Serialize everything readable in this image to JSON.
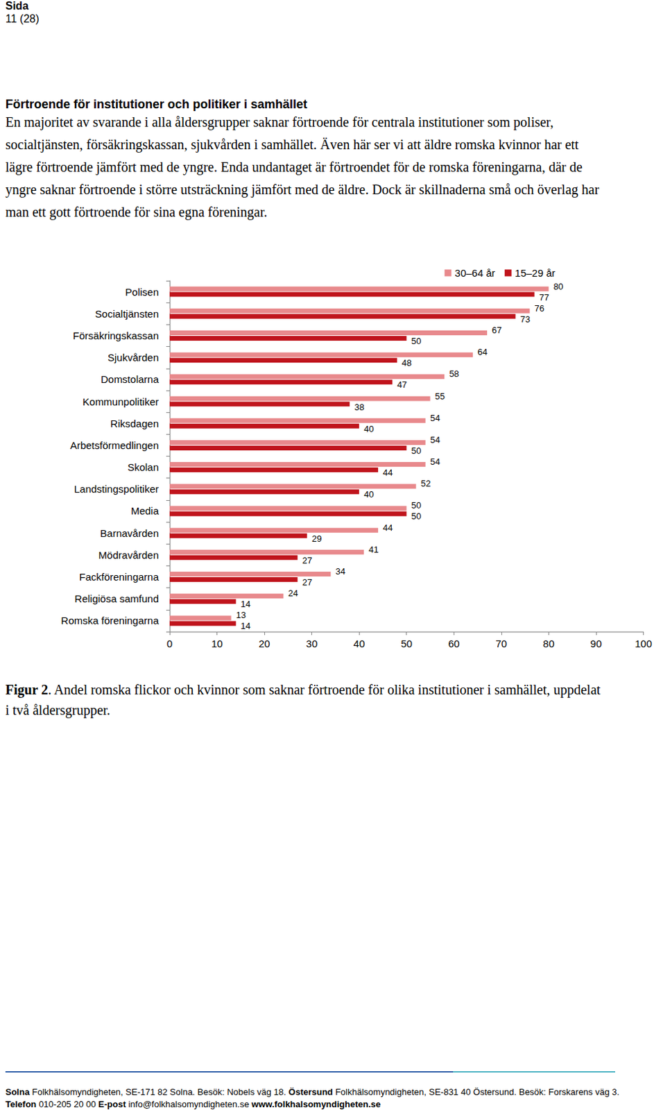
{
  "header": {
    "label": "Sida",
    "page": "11 (28)"
  },
  "heading": "Förtroende för institutioner och politiker i samhället",
  "paragraph": "En majoritet av svarande i alla åldersgrupper saknar förtroende för centrala institutioner som poliser, socialtjänsten, försäkringskassan, sjukvården i samhället. Även här ser vi att äldre romska kvinnor har ett lägre förtroende jämfört med de yngre. Enda undantaget är förtroendet för de romska föreningarna, där de yngre saknar förtroende i större utsträckning jämfört med de äldre. Dock är skillnaderna små och överlag har man ett gott förtroende för sina egna föreningar.",
  "chart_data": {
    "type": "bar",
    "orientation": "horizontal",
    "categories": [
      "Polisen",
      "Socialtjänsten",
      "Försäkringskassan",
      "Sjukvården",
      "Domstolarna",
      "Kommunpolitiker",
      "Riksdagen",
      "Arbetsförmedlingen",
      "Skolan",
      "Landstingspolitiker",
      "Media",
      "Barnavården",
      "Mödravården",
      "Fackföreningarna",
      "Religiösa samfund",
      "Romska föreningarna"
    ],
    "series": [
      {
        "name": "30–64 år",
        "color": "#e8898c",
        "values": [
          80,
          76,
          67,
          64,
          58,
          55,
          54,
          54,
          54,
          52,
          50,
          44,
          41,
          34,
          24,
          13
        ]
      },
      {
        "name": "15–29 år",
        "color": "#c0141c",
        "values": [
          77,
          73,
          50,
          48,
          47,
          38,
          40,
          50,
          44,
          40,
          50,
          29,
          27,
          27,
          14,
          14
        ]
      }
    ],
    "xlim": [
      0,
      100
    ],
    "xticks": [
      0,
      10,
      20,
      30,
      40,
      50,
      60,
      70,
      80,
      90,
      100
    ],
    "grid": false,
    "legend": "top-right",
    "data_labels": true
  },
  "caption": {
    "label": "Figur 2",
    "text": ". Andel romska flickor och kvinnor som saknar förtroende för olika institutioner i samhället, uppdelat i två åldersgrupper."
  },
  "footer": [
    [
      {
        "label": "Solna",
        "text": "Folkhälsomyndigheten, SE-171 82 Solna. Besök: Nobels väg 18."
      },
      {
        "label": "Östersund",
        "text": "Folkhälsomyndigheten, SE-831 40 Östersund. Besök: Forskarens väg 3."
      }
    ],
    [
      {
        "label": "Telefon",
        "text": "010-205 20 00"
      },
      {
        "label": "E-post",
        "text": "info@folkhalsomyndigheten.se"
      },
      {
        "label": "www.folkhalsomyndigheten.se"
      }
    ]
  ]
}
